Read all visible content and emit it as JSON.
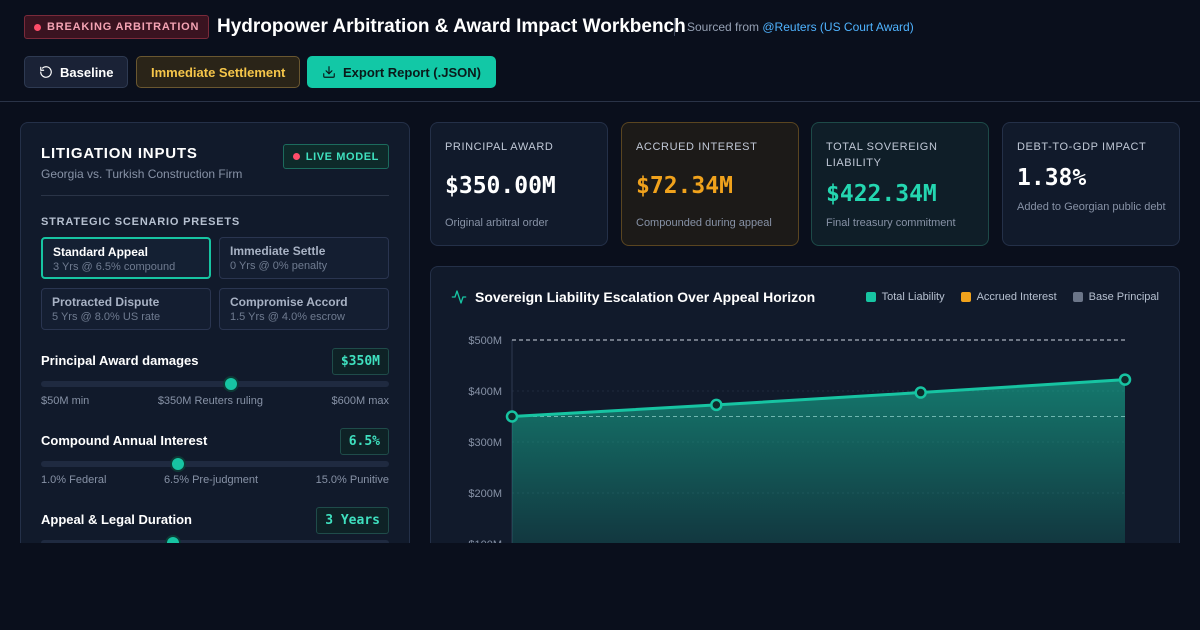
{
  "header": {
    "badge": "BREAKING ARBITRATION",
    "title": "Hydropower Arbitration & Award Impact Workbench",
    "source_prefix": "Sourced from",
    "source_link": "@Reuters (US Court Award)",
    "buttons": {
      "baseline": "Baseline",
      "settle": "Immediate Settlement",
      "export": "Export Report (.JSON)"
    }
  },
  "inputs": {
    "title": "LITIGATION INPUTS",
    "subtitle": "Georgia vs. Turkish Construction Firm",
    "live_badge": "LIVE MODEL",
    "presets_label": "STRATEGIC SCENARIO PRESETS",
    "presets": [
      {
        "name": "Standard Appeal",
        "desc": "3 Yrs @ 6.5% compound"
      },
      {
        "name": "Immediate Settle",
        "desc": "0 Yrs @ 0% penalty"
      },
      {
        "name": "Protracted Dispute",
        "desc": "5 Yrs @ 8.0% US rate"
      },
      {
        "name": "Compromise Accord",
        "desc": "1.5 Yrs @ 4.0% escrow"
      }
    ],
    "principal": {
      "label": "Principal Award damages",
      "value": "$350M",
      "level": 0.545,
      "min": "$50M min",
      "mid": "$350M Reuters ruling",
      "max": "$600M max"
    },
    "interest": {
      "label": "Compound Annual Interest",
      "value": "6.5%",
      "level": 0.393,
      "min": "1.0% Federal",
      "mid": "6.5% Pre-judgment",
      "max": "15.0% Punitive"
    },
    "duration": {
      "label": "Appeal & Legal Duration",
      "value": "3 Years",
      "level": 0.38
    }
  },
  "kpis": [
    {
      "label": "PRINCIPAL AWARD",
      "value": "$350.00M",
      "desc": "Original arbitral order",
      "color": "#ffffff"
    },
    {
      "label": "ACCRUED INTEREST",
      "value": "$72.34M",
      "desc": "Compounded during appeal",
      "color": "#f0a21c"
    },
    {
      "label": "TOTAL SOVEREIGN LIABILITY",
      "value": "$422.34M",
      "desc": "Final treasury commitment",
      "color": "#24d6b0"
    },
    {
      "label": "DEBT-TO-GDP IMPACT",
      "value": "1.38%",
      "desc": "Added to Georgian public debt",
      "color": "#ffffff"
    }
  ],
  "chart": {
    "title": "Sovereign Liability Escalation Over Appeal Horizon",
    "legend": [
      {
        "name": "Total Liability",
        "color": "#17c4a2"
      },
      {
        "name": "Accrued Interest",
        "color": "#f0a21c"
      },
      {
        "name": "Base Principal",
        "color": "#6b7588"
      }
    ]
  },
  "chart_data": {
    "type": "area",
    "x": [
      0,
      1,
      2,
      3
    ],
    "series": [
      {
        "name": "Total Liability",
        "values": [
          350,
          372.75,
          396.98,
          422.34
        ]
      },
      {
        "name": "Base Principal",
        "values": [
          350,
          350,
          350,
          350
        ]
      }
    ],
    "ylim": [
      0,
      500
    ],
    "yticks": [
      "$500M",
      "$400M",
      "$300M",
      "$200M",
      "$100M"
    ],
    "ytick_values": [
      500,
      400,
      300,
      200,
      100
    ],
    "reference_line": 500,
    "grid": true,
    "legend": "top-right"
  }
}
